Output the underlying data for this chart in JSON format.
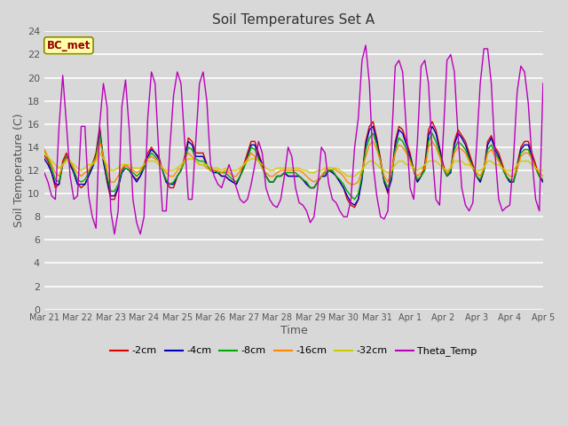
{
  "title": "Soil Temperatures Set A",
  "xlabel": "Time",
  "ylabel": "Soil Temperature (C)",
  "ylim": [
    0,
    24
  ],
  "yticks": [
    0,
    2,
    4,
    6,
    8,
    10,
    12,
    14,
    16,
    18,
    20,
    22,
    24
  ],
  "bg_color": "#d8d8d8",
  "plot_bg_color": "#d8d8d8",
  "grid_color": "white",
  "bc_met_label": "BC_met",
  "bc_met_bg": "#ffffaa",
  "bc_met_border": "#888800",
  "bc_met_text_color": "#990000",
  "legend_entries": [
    "-2cm",
    "-4cm",
    "-8cm",
    "-16cm",
    "-32cm",
    "Theta_Temp"
  ],
  "line_colors": [
    "#dd0000",
    "#0000bb",
    "#00aa00",
    "#ff8800",
    "#cccc00",
    "#bb00bb"
  ],
  "tick_labels": [
    "Mar 21",
    "Mar 22",
    "Mar 23",
    "Mar 24",
    "Mar 25",
    "Mar 26",
    "Mar 27",
    "Mar 28",
    "Mar 29",
    "Mar 30",
    "Mar 31",
    "Apr 1",
    "Apr 2",
    "Apr 3",
    "Apr 4",
    "Apr 5"
  ],
  "series": {
    "neg2cm": [
      13.3,
      12.8,
      11.8,
      10.5,
      10.8,
      12.8,
      13.5,
      12.5,
      11.8,
      10.8,
      10.5,
      10.8,
      11.5,
      12.5,
      13.5,
      15.8,
      12.8,
      11.0,
      9.5,
      9.5,
      10.5,
      12.0,
      12.5,
      12.2,
      11.5,
      11.2,
      11.5,
      12.5,
      13.5,
      14.0,
      13.5,
      13.2,
      12.0,
      11.0,
      10.5,
      10.5,
      11.5,
      12.0,
      13.2,
      14.8,
      14.5,
      13.5,
      13.5,
      13.5,
      12.5,
      12.0,
      12.0,
      11.8,
      11.5,
      11.5,
      11.2,
      11.0,
      10.8,
      11.5,
      12.5,
      13.5,
      14.5,
      14.5,
      13.5,
      12.5,
      11.5,
      11.0,
      11.0,
      11.5,
      11.5,
      11.8,
      11.5,
      11.5,
      11.5,
      11.5,
      11.2,
      10.8,
      10.5,
      10.5,
      11.0,
      11.5,
      11.5,
      12.0,
      12.0,
      11.5,
      11.0,
      10.5,
      9.5,
      9.0,
      8.8,
      9.5,
      11.5,
      14.5,
      15.8,
      16.2,
      14.8,
      13.0,
      11.0,
      10.0,
      11.5,
      14.5,
      15.8,
      15.5,
      14.5,
      13.5,
      12.0,
      11.0,
      11.5,
      12.5,
      15.5,
      16.2,
      15.5,
      14.0,
      12.5,
      11.5,
      12.0,
      14.5,
      15.5,
      15.0,
      14.5,
      13.5,
      12.5,
      11.5,
      11.0,
      12.0,
      14.5,
      15.0,
      14.0,
      13.5,
      12.5,
      11.5,
      11.0,
      11.0,
      12.5,
      14.0,
      14.5,
      14.5,
      13.5,
      12.5,
      11.5,
      11.0
    ],
    "neg4cm": [
      13.0,
      12.5,
      11.8,
      10.8,
      10.8,
      12.5,
      13.2,
      12.5,
      11.8,
      10.8,
      10.8,
      10.8,
      11.5,
      12.2,
      13.2,
      15.5,
      12.8,
      11.2,
      9.8,
      9.8,
      10.5,
      11.8,
      12.2,
      12.0,
      11.5,
      11.0,
      11.5,
      12.2,
      13.2,
      13.8,
      13.5,
      13.0,
      12.0,
      11.0,
      10.8,
      10.8,
      11.5,
      12.0,
      13.0,
      14.5,
      14.2,
      13.2,
      13.2,
      13.2,
      12.5,
      12.0,
      11.8,
      11.8,
      11.5,
      11.5,
      11.2,
      11.0,
      10.8,
      11.5,
      12.2,
      13.2,
      14.2,
      14.2,
      13.2,
      12.5,
      11.5,
      11.0,
      11.0,
      11.5,
      11.5,
      11.8,
      11.5,
      11.5,
      11.5,
      11.5,
      11.2,
      10.8,
      10.5,
      10.5,
      11.0,
      11.5,
      11.5,
      12.0,
      11.8,
      11.5,
      11.0,
      10.5,
      9.8,
      9.2,
      9.0,
      9.5,
      11.2,
      14.2,
      15.5,
      15.8,
      14.5,
      12.8,
      11.0,
      10.2,
      11.2,
      14.2,
      15.5,
      15.2,
      14.2,
      13.2,
      12.0,
      11.0,
      11.5,
      12.2,
      15.0,
      15.8,
      15.2,
      13.8,
      12.2,
      11.5,
      11.8,
      14.2,
      15.2,
      14.8,
      14.2,
      13.2,
      12.2,
      11.5,
      11.0,
      12.0,
      14.2,
      14.8,
      13.8,
      13.2,
      12.2,
      11.5,
      11.0,
      11.0,
      12.2,
      13.8,
      14.2,
      14.2,
      13.2,
      12.2,
      11.5,
      11.0
    ],
    "neg8cm": [
      13.8,
      13.0,
      12.2,
      11.2,
      11.0,
      12.5,
      13.2,
      12.8,
      12.0,
      11.2,
      11.0,
      11.2,
      11.8,
      12.5,
      13.2,
      15.2,
      13.2,
      11.5,
      10.2,
      10.2,
      10.8,
      12.0,
      12.2,
      12.0,
      11.8,
      11.5,
      11.8,
      12.2,
      13.0,
      13.5,
      13.2,
      12.8,
      12.0,
      11.2,
      10.8,
      11.0,
      11.5,
      12.0,
      12.8,
      14.0,
      13.8,
      13.0,
      12.8,
      12.8,
      12.5,
      12.0,
      12.0,
      11.8,
      11.8,
      11.8,
      11.5,
      11.2,
      11.0,
      11.5,
      12.2,
      13.0,
      14.0,
      13.8,
      13.0,
      12.2,
      11.5,
      11.0,
      11.0,
      11.5,
      11.5,
      11.8,
      11.8,
      11.8,
      11.8,
      11.5,
      11.2,
      11.0,
      10.5,
      10.5,
      11.0,
      11.5,
      11.8,
      12.0,
      12.0,
      11.5,
      11.2,
      10.8,
      10.2,
      9.8,
      9.5,
      10.0,
      11.5,
      13.8,
      14.8,
      15.2,
      14.2,
      12.8,
      11.2,
      10.5,
      11.5,
      13.8,
      14.8,
      14.5,
      13.8,
      13.0,
      12.0,
      11.2,
      11.5,
      12.0,
      14.5,
      15.2,
      14.5,
      13.5,
      12.2,
      11.5,
      12.0,
      13.8,
      14.5,
      14.2,
      13.8,
      13.0,
      12.2,
      11.5,
      11.2,
      12.0,
      13.8,
      14.2,
      13.5,
      13.0,
      12.2,
      11.5,
      11.2,
      11.0,
      12.2,
      13.5,
      13.8,
      13.8,
      13.0,
      12.2,
      11.5,
      11.2
    ],
    "neg16cm": [
      13.8,
      13.2,
      12.5,
      11.8,
      11.5,
      12.5,
      13.0,
      12.8,
      12.2,
      11.8,
      11.5,
      11.8,
      12.0,
      12.5,
      13.0,
      14.5,
      13.2,
      12.0,
      11.0,
      11.0,
      11.5,
      12.2,
      12.5,
      12.2,
      12.0,
      11.8,
      12.0,
      12.5,
      13.0,
      13.2,
      13.0,
      12.8,
      12.2,
      11.8,
      11.5,
      11.5,
      12.0,
      12.2,
      13.0,
      13.5,
      13.2,
      12.8,
      12.5,
      12.5,
      12.2,
      12.0,
      12.0,
      12.0,
      11.8,
      12.0,
      11.8,
      11.5,
      11.5,
      12.0,
      12.5,
      13.0,
      13.5,
      13.2,
      12.8,
      12.2,
      11.8,
      11.5,
      11.5,
      11.8,
      12.0,
      12.0,
      12.0,
      12.0,
      12.0,
      12.0,
      11.8,
      11.5,
      11.2,
      11.0,
      11.2,
      11.5,
      12.0,
      12.2,
      12.2,
      12.0,
      11.8,
      11.5,
      11.0,
      10.8,
      10.8,
      11.0,
      12.0,
      13.2,
      14.2,
      14.5,
      13.8,
      12.8,
      11.5,
      11.0,
      12.0,
      13.5,
      14.2,
      14.0,
      13.5,
      12.8,
      12.0,
      11.5,
      11.8,
      12.2,
      14.0,
      14.5,
      14.0,
      13.2,
      12.2,
      11.8,
      12.2,
      13.5,
      14.0,
      13.8,
      13.5,
      12.8,
      12.2,
      11.8,
      11.5,
      12.2,
      13.5,
      13.8,
      13.2,
      12.8,
      12.2,
      11.8,
      11.5,
      11.5,
      12.2,
      13.2,
      13.5,
      13.5,
      13.0,
      12.2,
      11.8,
      11.5
    ],
    "neg32cm": [
      13.5,
      13.2,
      12.8,
      12.5,
      12.2,
      12.5,
      12.8,
      12.8,
      12.5,
      12.2,
      12.0,
      12.2,
      12.5,
      12.5,
      12.8,
      13.5,
      13.0,
      12.5,
      12.0,
      12.0,
      12.2,
      12.5,
      12.5,
      12.5,
      12.2,
      12.2,
      12.2,
      12.5,
      12.8,
      12.8,
      12.8,
      12.5,
      12.2,
      12.0,
      12.0,
      12.0,
      12.2,
      12.5,
      12.8,
      13.0,
      13.0,
      12.8,
      12.5,
      12.5,
      12.5,
      12.2,
      12.2,
      12.2,
      12.0,
      12.2,
      12.0,
      12.0,
      12.0,
      12.2,
      12.5,
      12.8,
      13.0,
      13.0,
      12.8,
      12.5,
      12.2,
      12.0,
      12.0,
      12.2,
      12.2,
      12.2,
      12.2,
      12.2,
      12.2,
      12.2,
      12.0,
      12.0,
      11.8,
      11.8,
      12.0,
      12.0,
      12.2,
      12.2,
      12.2,
      12.2,
      12.0,
      11.8,
      11.5,
      11.5,
      11.5,
      11.8,
      12.0,
      12.5,
      12.8,
      12.8,
      12.5,
      12.2,
      12.0,
      11.8,
      12.0,
      12.5,
      12.8,
      12.8,
      12.5,
      12.5,
      12.2,
      12.0,
      12.2,
      12.5,
      12.8,
      12.8,
      12.8,
      12.5,
      12.2,
      12.0,
      12.2,
      12.8,
      12.8,
      12.8,
      12.5,
      12.5,
      12.2,
      12.0,
      12.0,
      12.2,
      12.8,
      12.8,
      12.5,
      12.5,
      12.2,
      12.0,
      12.0,
      12.0,
      12.5,
      12.8,
      12.8,
      12.8,
      12.5,
      12.2,
      12.0,
      12.0
    ],
    "theta": [
      11.8,
      11.0,
      9.8,
      9.5,
      15.8,
      20.2,
      16.0,
      11.5,
      9.5,
      9.8,
      15.8,
      15.8,
      9.8,
      8.0,
      7.0,
      16.0,
      19.5,
      17.5,
      8.5,
      6.5,
      8.5,
      17.5,
      19.8,
      15.5,
      9.5,
      7.5,
      6.5,
      8.0,
      16.5,
      20.5,
      19.5,
      13.5,
      8.5,
      8.5,
      14.0,
      18.5,
      20.5,
      19.5,
      14.5,
      9.5,
      9.5,
      14.5,
      19.5,
      20.5,
      18.0,
      12.5,
      11.5,
      10.8,
      10.5,
      11.5,
      12.5,
      11.5,
      10.5,
      9.5,
      9.2,
      9.5,
      10.8,
      12.5,
      14.5,
      13.5,
      10.5,
      9.5,
      9.0,
      8.8,
      9.5,
      11.5,
      14.0,
      13.2,
      10.5,
      9.2,
      9.0,
      8.5,
      7.5,
      8.0,
      10.5,
      14.0,
      13.5,
      10.8,
      9.5,
      9.2,
      8.5,
      8.0,
      8.0,
      9.5,
      14.0,
      16.5,
      21.5,
      22.8,
      19.5,
      12.5,
      9.8,
      8.0,
      7.8,
      8.5,
      14.5,
      21.0,
      21.5,
      20.5,
      15.5,
      10.5,
      9.5,
      14.5,
      21.0,
      21.5,
      19.5,
      13.5,
      9.5,
      9.0,
      15.0,
      21.5,
      22.0,
      20.5,
      15.0,
      10.5,
      9.0,
      8.5,
      9.2,
      14.0,
      19.5,
      22.5,
      22.5,
      19.5,
      13.5,
      9.5,
      8.5,
      8.8,
      9.0,
      13.0,
      18.8,
      21.0,
      20.5,
      17.8,
      13.0,
      9.5,
      8.5,
      19.5
    ]
  }
}
